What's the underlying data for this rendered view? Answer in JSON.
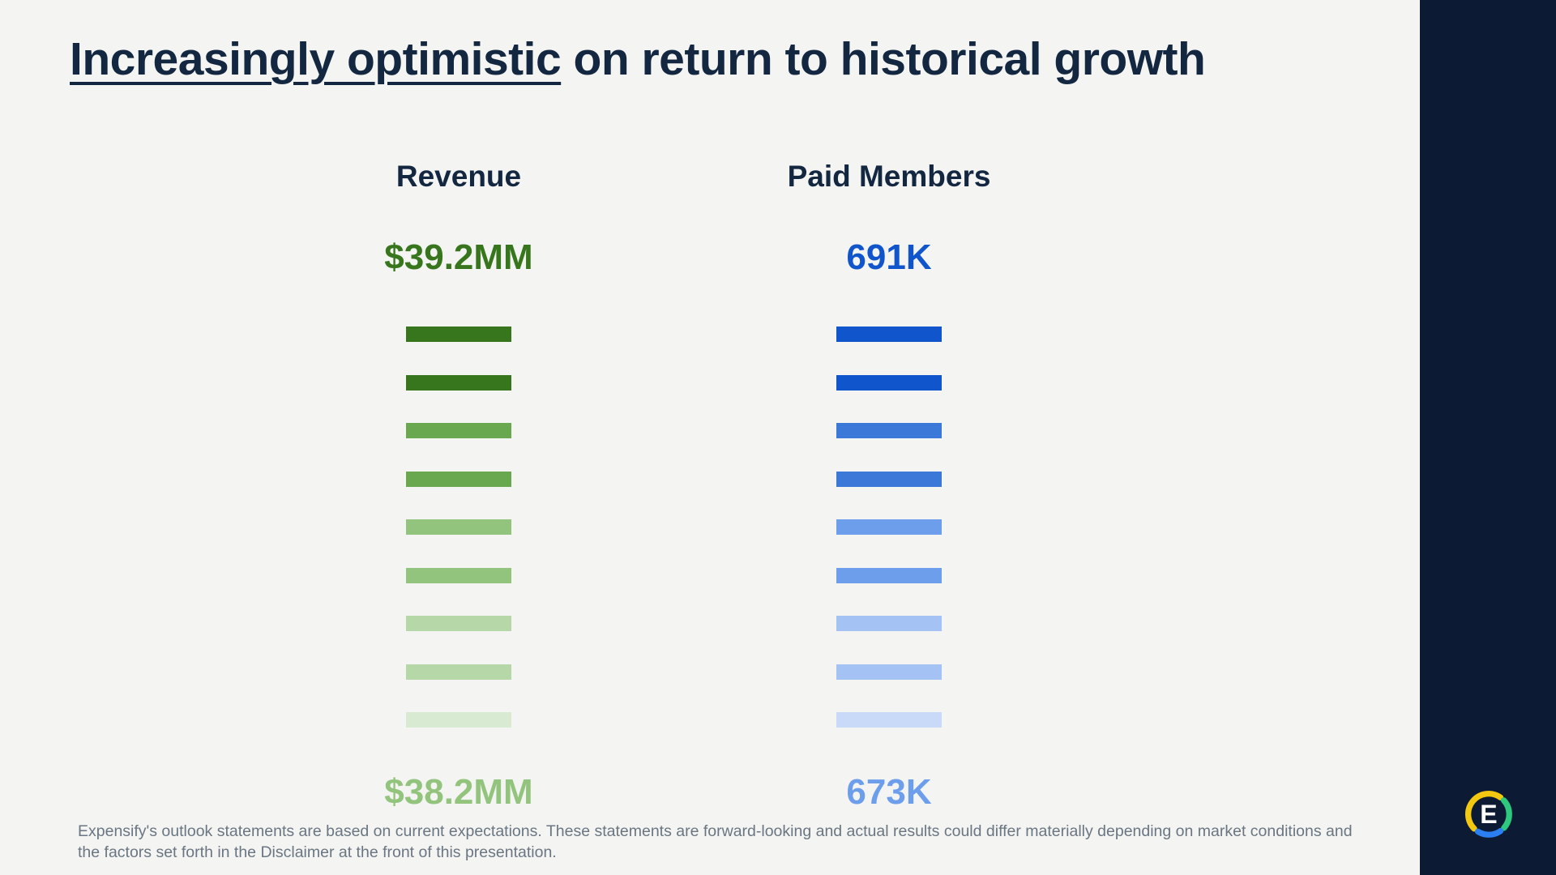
{
  "title": {
    "emphasized": "Increasingly optimistic",
    "rest": " on return to historical growth"
  },
  "columns": {
    "revenue": {
      "header": "Revenue",
      "top_value": "$39.2MM",
      "bottom_value": "$38.2MM",
      "top_value_color": "#38761d",
      "bottom_value_color": "#93c47d",
      "bars": [
        "#38761d",
        "#38761d",
        "#6aa84f",
        "#6aa84f",
        "#93c47d",
        "#93c47d",
        "#b6d7a8",
        "#b6d7a8",
        "#d9ead3"
      ]
    },
    "paid_members": {
      "header": "Paid Members",
      "top_value": "691K",
      "bottom_value": "673K",
      "top_value_color": "#1155cc",
      "bottom_value_color": "#6d9eeb",
      "bars": [
        "#1155cc",
        "#1155cc",
        "#3c78d8",
        "#3c78d8",
        "#6d9eeb",
        "#6d9eeb",
        "#a4c2f4",
        "#a4c2f4",
        "#c9daf8"
      ]
    }
  },
  "disclaimer": "Expensify's outlook statements are based on current expectations. These statements are forward-looking and actual results could differ materially depending on market conditions and the factors set forth in the Disclaimer at the front of this presentation.",
  "logo": {
    "letter": "E",
    "ring_colors": {
      "yellow": "#f2c811",
      "green": "#2dc97e",
      "blue": "#2b7ff2"
    }
  },
  "theme": {
    "background": "#f4f4f3",
    "sidebar": "#0c1b33",
    "heading": "#142740",
    "disclaimer_text": "#6a7681"
  },
  "chart_data": [
    {
      "type": "bar",
      "title": "Revenue",
      "annotations": {
        "top_label": "$39.2MM",
        "bottom_label": "$38.2MM"
      },
      "values": [
        39.2,
        38.2
      ],
      "unit": "$MM",
      "note": "9 equal-width horizontal bars fading dark-to-light green from top value to bottom value",
      "bar_count": 9
    },
    {
      "type": "bar",
      "title": "Paid Members",
      "annotations": {
        "top_label": "691K",
        "bottom_label": "673K"
      },
      "values": [
        691,
        673
      ],
      "unit": "K",
      "note": "9 equal-width horizontal bars fading dark-to-light blue from top value to bottom value",
      "bar_count": 9
    }
  ]
}
